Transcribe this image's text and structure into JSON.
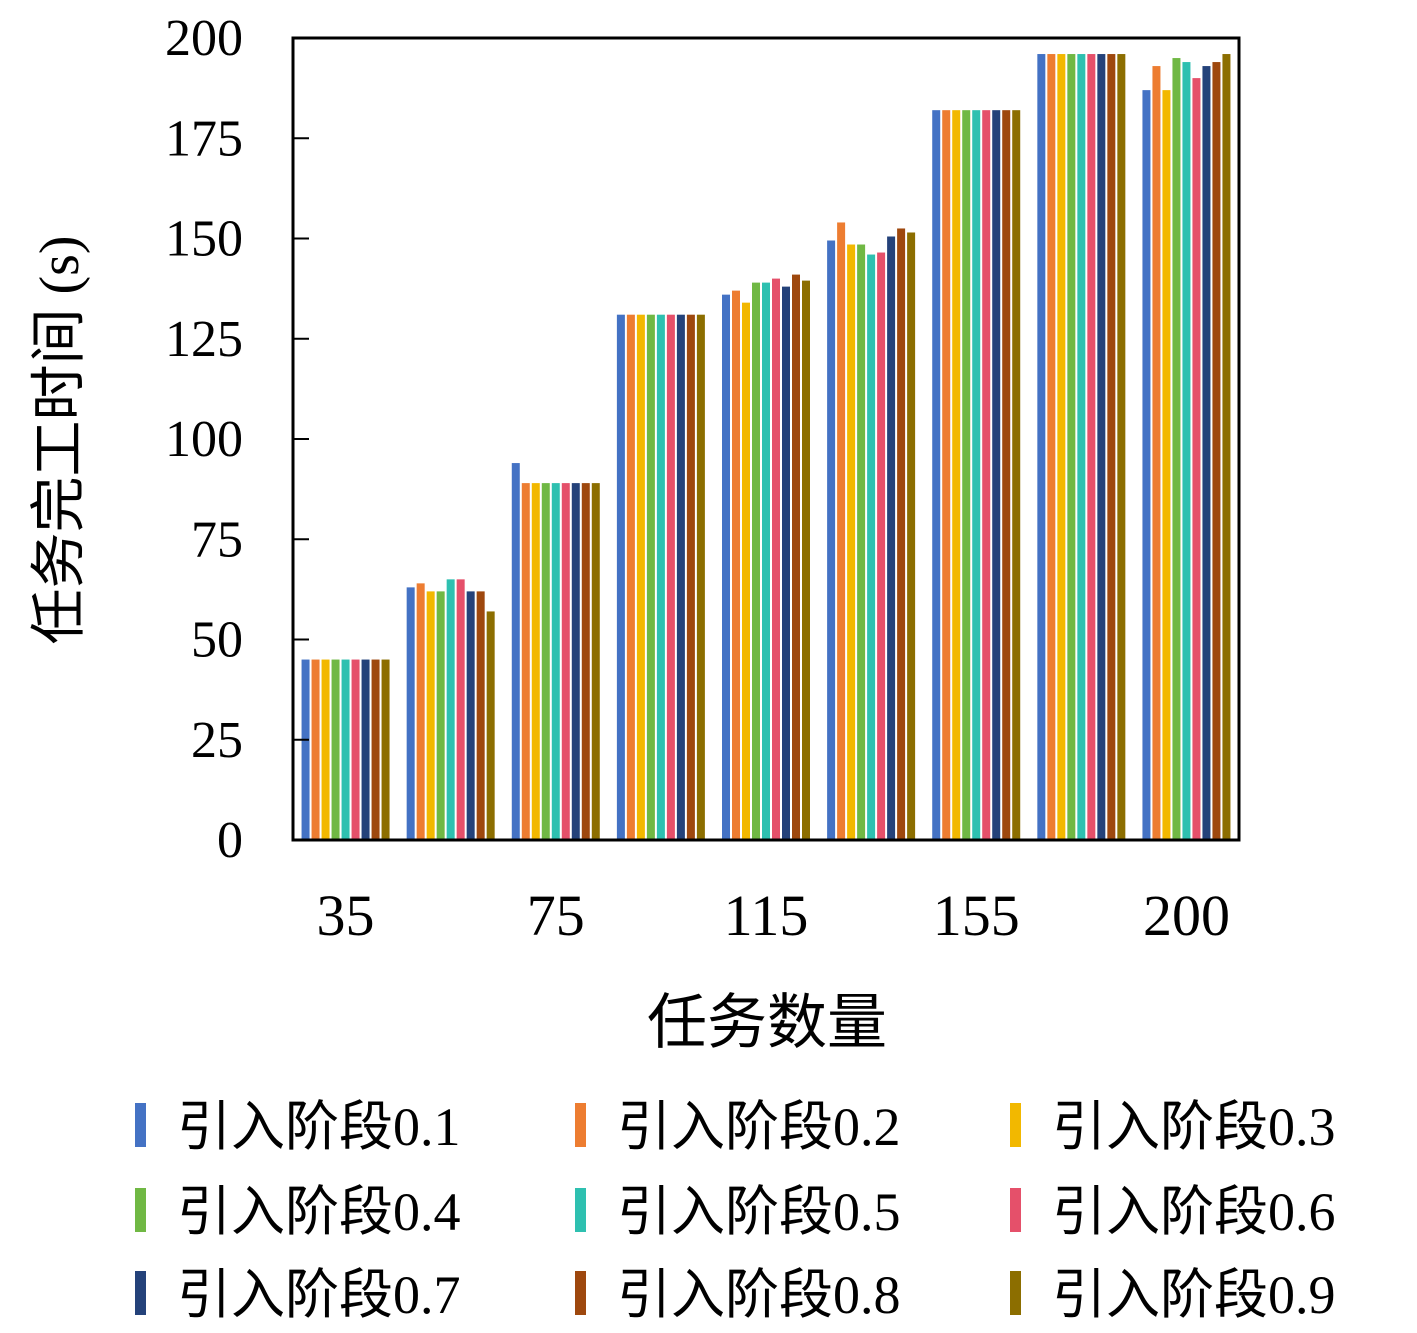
{
  "chart_data": {
    "type": "bar",
    "title": "",
    "xlabel": "任务数量",
    "ylabel": "任务完工时间 (s)",
    "ylim": [
      0,
      200
    ],
    "yticks": [
      "0",
      "25",
      "50",
      "75",
      "100",
      "125",
      "150",
      "175",
      "200"
    ],
    "categories": [
      "35",
      "",
      "75",
      "",
      "115",
      "",
      "155",
      "",
      "200"
    ],
    "grid": false,
    "legend_position": "bottom",
    "series": [
      {
        "name": "引入阶段0.1",
        "color": "#4472C4",
        "values": [
          45,
          63,
          94,
          131,
          136,
          149.5,
          182,
          196,
          187
        ]
      },
      {
        "name": "引入阶段0.2",
        "color": "#ED7D31",
        "values": [
          45,
          64,
          89,
          131,
          137,
          154,
          182,
          196,
          193
        ]
      },
      {
        "name": "引入阶段0.3",
        "color": "#F2B800",
        "values": [
          45,
          62,
          89,
          131,
          134,
          148.5,
          182,
          196,
          187
        ]
      },
      {
        "name": "引入阶段0.4",
        "color": "#70B844",
        "values": [
          45,
          62,
          89,
          131,
          139,
          148.5,
          182,
          196,
          195
        ]
      },
      {
        "name": "引入阶段0.5",
        "color": "#2EC0B0",
        "values": [
          45,
          65,
          89,
          131,
          139,
          146,
          182,
          196,
          194
        ]
      },
      {
        "name": "引入阶段0.6",
        "color": "#E5506A",
        "values": [
          45,
          65,
          89,
          131,
          140,
          146.5,
          182,
          196,
          190
        ]
      },
      {
        "name": "引入阶段0.7",
        "color": "#24427A",
        "values": [
          45,
          62,
          89,
          131,
          138,
          150.5,
          182,
          196,
          193
        ]
      },
      {
        "name": "引入阶段0.8",
        "color": "#9E480E",
        "values": [
          45,
          62,
          89,
          131,
          141,
          152.5,
          182,
          196,
          194
        ]
      },
      {
        "name": "引入阶段0.9",
        "color": "#8C6E00",
        "values": [
          45,
          57,
          89,
          131,
          139.5,
          151.5,
          182,
          196,
          196
        ]
      }
    ]
  }
}
